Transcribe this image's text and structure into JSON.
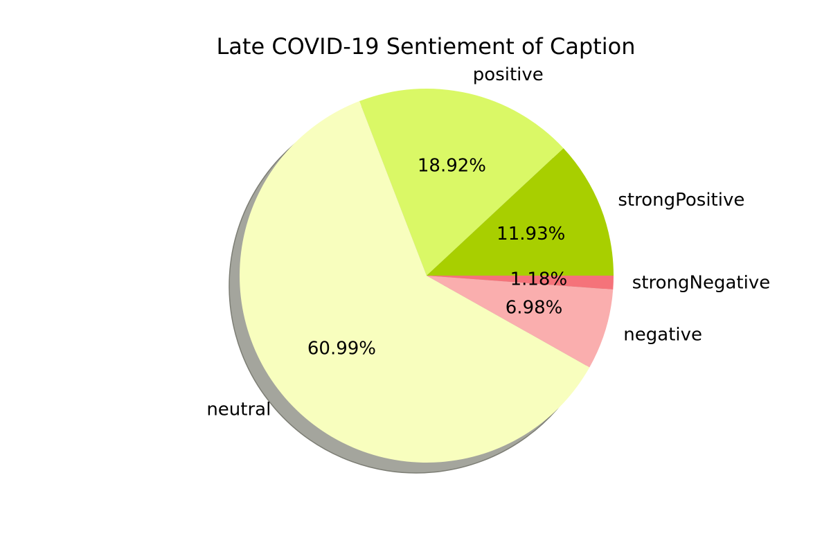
{
  "chart_data": {
    "type": "pie",
    "title": "Late COVID-19 Sentiement of Caption",
    "start_angle_deg": 0,
    "direction": "counterclockwise",
    "shadow": true,
    "slices": [
      {
        "label": "strongPositive",
        "value": 11.93,
        "pct_text": "11.93%",
        "color": "#a8cf00"
      },
      {
        "label": "positive",
        "value": 18.92,
        "pct_text": "18.92%",
        "color": "#daf866"
      },
      {
        "label": "neutral",
        "value": 60.99,
        "pct_text": "60.99%",
        "color": "#f8febe"
      },
      {
        "label": "negative",
        "value": 6.98,
        "pct_text": "6.98%",
        "color": "#faaeae"
      },
      {
        "label": "strongNegative",
        "value": 1.18,
        "pct_text": "1.18%",
        "color": "#f5737a"
      }
    ]
  }
}
